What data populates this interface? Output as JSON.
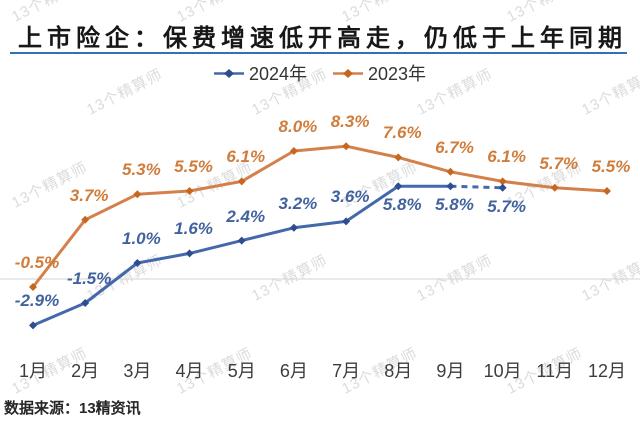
{
  "title": "上市险企：保费增速低开高走，仍低于上年同期",
  "watermark": "13个精算师",
  "source": "数据来源：13精资讯",
  "chart_data": {
    "type": "line",
    "title": "上市险企：保费增速低开高走，仍低于上年同期",
    "xlabel": "",
    "ylabel": "",
    "ylim": [
      -4,
      9.5
    ],
    "grid": "zero-line-only",
    "legend_position": "top-center",
    "zero_line_color": "#dcdcdc",
    "categories": [
      "1月",
      "2月",
      "3月",
      "4月",
      "5月",
      "6月",
      "7月",
      "8月",
      "9月",
      "10月",
      "11月",
      "12月"
    ],
    "series": [
      {
        "name": "2024年",
        "color": "#4468ac",
        "marker_color": "#2e4d8e",
        "values": [
          -2.9,
          -1.5,
          1.0,
          1.6,
          2.4,
          3.2,
          3.6,
          5.8,
          5.8,
          5.7
        ],
        "labels": [
          "-2.9%",
          "-1.5%",
          "1.0%",
          "1.6%",
          "2.4%",
          "3.2%",
          "3.6%",
          "5.8%",
          "5.8%",
          "5.7%"
        ],
        "dashed_last_segment": true
      },
      {
        "name": "2023年",
        "color": "#d4804a",
        "marker_color": "#c7671f",
        "values": [
          -0.5,
          3.7,
          5.3,
          5.5,
          6.1,
          8.0,
          8.3,
          7.6,
          6.7,
          6.1,
          5.7,
          5.5
        ],
        "labels": [
          "-0.5%",
          "3.7%",
          "5.3%",
          "5.5%",
          "6.1%",
          "8.0%",
          "8.3%",
          "7.6%",
          "6.7%",
          "6.1%",
          "5.7%",
          "5.5%"
        ],
        "dashed_last_segment": false
      }
    ]
  }
}
